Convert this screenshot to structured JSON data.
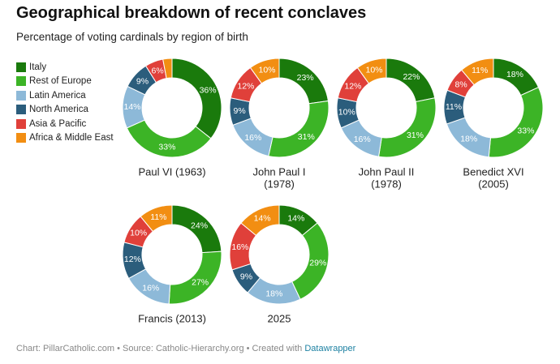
{
  "header": {
    "title": "Geographical breakdown of recent conclaves",
    "subtitle": "Percentage of voting cardinals by region of birth"
  },
  "legend": [
    {
      "label": "Italy",
      "color": "#1a7a0c"
    },
    {
      "label": "Rest of Europe",
      "color": "#3cb426"
    },
    {
      "label": "Latin America",
      "color": "#8db9d8"
    },
    {
      "label": "North America",
      "color": "#2b5d7c"
    },
    {
      "label": "Asia & Pacific",
      "color": "#e0403a"
    },
    {
      "label": "Africa & Middle East",
      "color": "#f28e12"
    }
  ],
  "chart_data": {
    "type": "donut",
    "categories": [
      "Italy",
      "Rest of Europe",
      "Latin America",
      "North America",
      "Asia & Pacific",
      "Africa & Middle East"
    ],
    "unit": "%",
    "series": [
      {
        "name": "Paul VI (1963)",
        "values": [
          36,
          33,
          14,
          9,
          6,
          3
        ],
        "labels": [
          "36%",
          "33%",
          "14%",
          "9%",
          "6%",
          ""
        ]
      },
      {
        "name": "John Paul I (1978)",
        "values": [
          23,
          31,
          16,
          9,
          12,
          10
        ],
        "labels": [
          "23%",
          "31%",
          "16%",
          "9%",
          "12%",
          "10%"
        ]
      },
      {
        "name": "John Paul II (1978)",
        "values": [
          22,
          31,
          16,
          10,
          12,
          10
        ],
        "labels": [
          "22%",
          "31%",
          "16%",
          "10%",
          "12%",
          "10%"
        ]
      },
      {
        "name": "Benedict XVI (2005)",
        "values": [
          18,
          33,
          18,
          11,
          8,
          11
        ],
        "labels": [
          "18%",
          "33%",
          "18%",
          "11%",
          "8%",
          "11%"
        ]
      },
      {
        "name": "Francis (2013)",
        "values": [
          24,
          27,
          16,
          12,
          10,
          11
        ],
        "labels": [
          "24%",
          "27%",
          "16%",
          "12%",
          "10%",
          "11%"
        ]
      },
      {
        "name": "2025",
        "values": [
          14,
          29,
          18,
          9,
          16,
          14
        ],
        "labels": [
          "14%",
          "29%",
          "18%",
          "9%",
          "16%",
          "14%"
        ]
      }
    ]
  },
  "footer": {
    "credit": "Chart: PillarCatholic.com • Source: Catholic-Hierarchy.org • Created with ",
    "tool": "Datawrapper"
  }
}
